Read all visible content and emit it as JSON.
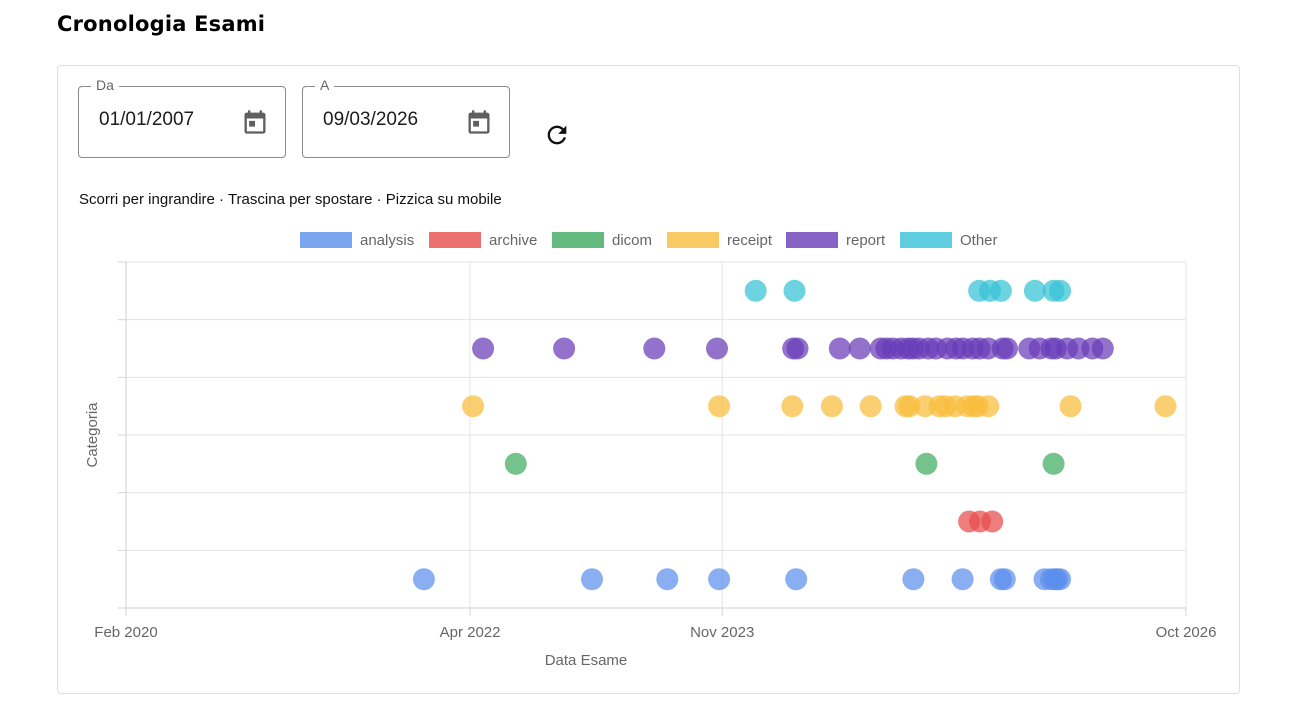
{
  "page": {
    "title": "Cronologia Esami"
  },
  "filters": {
    "from": {
      "label": "Da",
      "value": "01/01/2007",
      "icon": "calendar-icon"
    },
    "to": {
      "label": "A",
      "value": "09/03/2026",
      "icon": "calendar-icon"
    },
    "refresh_icon": "refresh-icon"
  },
  "hint": "Scorri per ingrandire · Trascina per spostare · Pizzica su mobile",
  "chart_data": {
    "type": "scatter",
    "title": "",
    "xlabel": "Data Esame",
    "ylabel": "Categoria",
    "x_type": "date",
    "xlim": [
      "2020-02-01",
      "2026-10-01"
    ],
    "x_ticks": [
      {
        "date": "2020-02-01",
        "label": "Feb 2020"
      },
      {
        "date": "2022-04-01",
        "label": "Apr 2022"
      },
      {
        "date": "2023-11-01",
        "label": "Nov 2023"
      },
      {
        "date": "2026-10-01",
        "label": "Oct 2026"
      }
    ],
    "categories": [
      "analysis",
      "archive",
      "dicom",
      "receipt",
      "report",
      "Other"
    ],
    "grid": true,
    "legend": "top",
    "series": [
      {
        "name": "analysis",
        "color": "#5b8fec",
        "x": [
          "2021-12-16",
          "2023-01-06",
          "2023-06-28",
          "2023-10-25",
          "2024-04-19",
          "2025-01-13",
          "2025-05-06",
          "2025-08-02",
          "2025-08-11",
          "2025-11-10",
          "2025-11-25",
          "2025-12-04",
          "2025-12-09",
          "2025-12-16"
        ]
      },
      {
        "name": "archive",
        "color": "#e84c4c",
        "x": [
          "2025-05-21",
          "2025-06-15",
          "2025-07-13"
        ]
      },
      {
        "name": "dicom",
        "color": "#3faa5f",
        "x": [
          "2022-07-15",
          "2025-02-12",
          "2025-12-01"
        ]
      },
      {
        "name": "receipt",
        "color": "#f8bd3c",
        "x": [
          "2022-04-08",
          "2023-10-25",
          "2024-04-10",
          "2024-07-10",
          "2024-10-07",
          "2024-12-26",
          "2025-01-04",
          "2025-02-09",
          "2025-03-14",
          "2025-03-28",
          "2025-04-19",
          "2025-05-17",
          "2025-06-01",
          "2025-06-10",
          "2025-07-04",
          "2026-01-09",
          "2026-08-15"
        ]
      },
      {
        "name": "report",
        "color": "#6a3cb8",
        "x": [
          "2022-05-01",
          "2022-11-03",
          "2023-05-29",
          "2023-10-20",
          "2024-04-12",
          "2024-04-22",
          "2024-07-28",
          "2024-09-12",
          "2024-10-30",
          "2024-11-12",
          "2024-11-27",
          "2024-12-16",
          "2025-01-01",
          "2025-01-12",
          "2025-01-26",
          "2025-02-16",
          "2025-03-06",
          "2025-04-01",
          "2025-04-21",
          "2025-05-07",
          "2025-05-29",
          "2025-06-14",
          "2025-07-04",
          "2025-08-06",
          "2025-08-16",
          "2025-10-06",
          "2025-10-30",
          "2025-11-26",
          "2025-12-06",
          "2026-01-01",
          "2026-01-27",
          "2026-02-28",
          "2026-03-24"
        ]
      },
      {
        "name": "Other",
        "color": "#36c2d6",
        "x": [
          "2024-01-17",
          "2024-04-15",
          "2025-06-13",
          "2025-07-08",
          "2025-08-02",
          "2025-10-19",
          "2025-12-01",
          "2025-12-16"
        ]
      }
    ]
  }
}
